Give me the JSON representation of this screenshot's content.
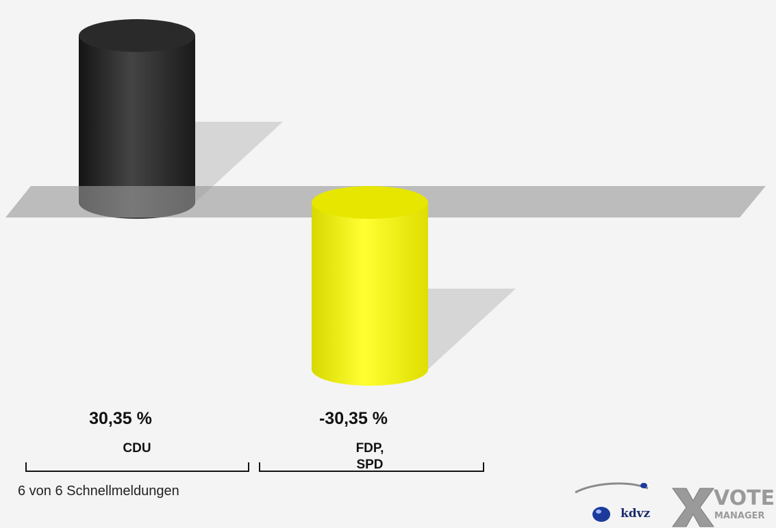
{
  "chart_data": {
    "type": "bar",
    "categories": [
      "CDU",
      "FDP,\nSPD"
    ],
    "values": [
      30.35,
      -30.35
    ],
    "value_labels": [
      "30,35 %",
      "-30,35 %"
    ],
    "colors": [
      "#2b2b2b",
      "#f2f200"
    ],
    "ylim": [
      -30.35,
      30.35
    ],
    "title": "",
    "xlabel": "",
    "ylabel": "",
    "grid": false,
    "legend": "none"
  },
  "footer": {
    "status": "6 von 6 Schnellmeldungen"
  },
  "logo": {
    "brand": "kdvz",
    "product_line1": "VOTE",
    "product_line2": "MANAGER"
  }
}
